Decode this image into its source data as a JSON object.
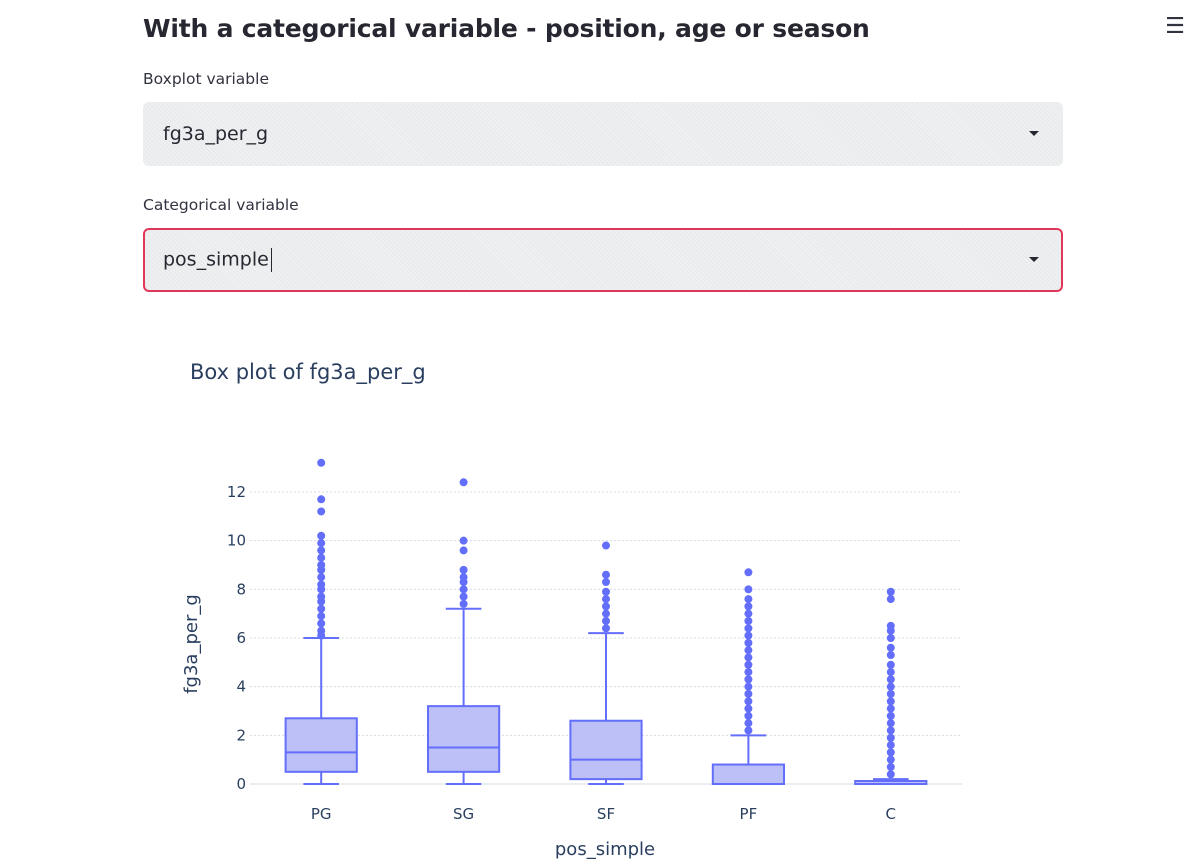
{
  "app": {
    "heading": "With a categorical variable - position, age or season",
    "menu_icon": "hamburger-menu-icon"
  },
  "form": {
    "boxplot_variable": {
      "label": "Boxplot variable",
      "value": "fg3a_per_g",
      "icon": "chevron-down-icon"
    },
    "categorical_variable": {
      "label": "Categorical variable",
      "value": "pos_simple",
      "icon": "chevron-down-icon",
      "focused": true
    }
  },
  "colors": {
    "accent_focus": "#e0385b",
    "box_line": "#636efa",
    "box_fill": "#b0b5f6",
    "chart_text": "#2a3f5f",
    "grid": "#d6dbe3"
  },
  "chart_data": {
    "type": "box",
    "title": "Box plot of fg3a_per_g",
    "xlabel": "pos_simple",
    "ylabel": "fg3a_per_g",
    "categories": [
      "PG",
      "SG",
      "SF",
      "PF",
      "C"
    ],
    "ylim": [
      -0.5,
      13.3
    ],
    "yticks": [
      0,
      2,
      4,
      6,
      8,
      10,
      12
    ],
    "grid": true,
    "boxes": [
      {
        "category": "PG",
        "whisker_low": 0,
        "q1": 0.5,
        "median": 1.3,
        "q3": 2.7,
        "whisker_high": 6.0,
        "outliers": [
          6.1,
          6.3,
          6.6,
          6.9,
          7.2,
          7.5,
          7.7,
          8.0,
          8.2,
          8.5,
          8.8,
          9.0,
          9.3,
          9.6,
          9.9,
          10.2,
          11.2,
          11.7,
          13.2
        ]
      },
      {
        "category": "SG",
        "whisker_low": 0,
        "q1": 0.5,
        "median": 1.5,
        "q3": 3.2,
        "whisker_high": 7.2,
        "outliers": [
          7.4,
          7.7,
          8.0,
          8.3,
          8.5,
          8.8,
          9.6,
          10.0,
          12.4
        ]
      },
      {
        "category": "SF",
        "whisker_low": 0,
        "q1": 0.2,
        "median": 1.0,
        "q3": 2.6,
        "whisker_high": 6.2,
        "outliers": [
          6.4,
          6.7,
          7.0,
          7.3,
          7.6,
          7.9,
          8.3,
          8.6,
          9.8
        ]
      },
      {
        "category": "PF",
        "whisker_low": 0,
        "q1": 0,
        "median": 0,
        "q3": 0.8,
        "whisker_high": 2.0,
        "outliers": [
          2.2,
          2.5,
          2.8,
          3.1,
          3.4,
          3.7,
          4.0,
          4.3,
          4.6,
          4.9,
          5.2,
          5.5,
          5.8,
          6.1,
          6.4,
          6.7,
          7.0,
          7.3,
          7.6,
          8.0,
          8.7
        ]
      },
      {
        "category": "C",
        "whisker_low": 0,
        "q1": 0,
        "median": 0,
        "q3": 0.1,
        "whisker_high": 0.2,
        "outliers": [
          0.4,
          0.7,
          1.0,
          1.3,
          1.6,
          1.9,
          2.2,
          2.5,
          2.8,
          3.1,
          3.4,
          3.7,
          4.0,
          4.3,
          4.6,
          4.9,
          5.3,
          5.6,
          6.0,
          6.3,
          6.5,
          7.6,
          7.9
        ]
      }
    ]
  }
}
